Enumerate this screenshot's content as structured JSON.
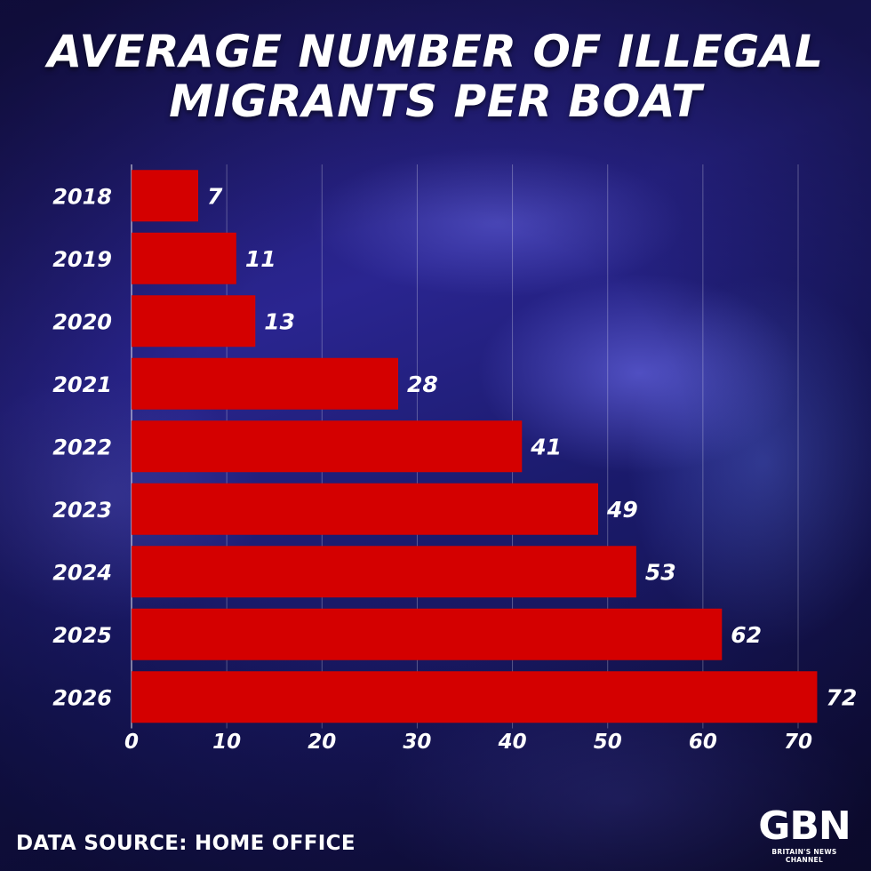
{
  "chart_data": {
    "type": "bar",
    "orientation": "horizontal",
    "title_lines": [
      "AVERAGE NUMBER OF ILLEGAL",
      "MIGRANTS PER BOAT"
    ],
    "categories": [
      "2018",
      "2019",
      "2020",
      "2021",
      "2022",
      "2023",
      "2024",
      "2025",
      "2026"
    ],
    "values": [
      7,
      11,
      13,
      28,
      41,
      49,
      53,
      62,
      72
    ],
    "value_labels": [
      "7",
      "11",
      "13",
      "28",
      "41",
      "49",
      "53",
      "62",
      "72"
    ],
    "xticks": [
      "0",
      "10",
      "20",
      "30",
      "40",
      "50",
      "60",
      "70"
    ],
    "xtick_values": [
      0,
      10,
      20,
      30,
      40,
      50,
      60,
      70
    ],
    "xlim": [
      0,
      70
    ],
    "grid": true,
    "bar_color": "#d40000",
    "xlabel": "",
    "ylabel": ""
  },
  "footer": {
    "source": "DATA SOURCE: HOME OFFICE"
  },
  "logo": {
    "mark": "GBN",
    "tagline": "BRITAIN'S NEWS CHANNEL"
  }
}
